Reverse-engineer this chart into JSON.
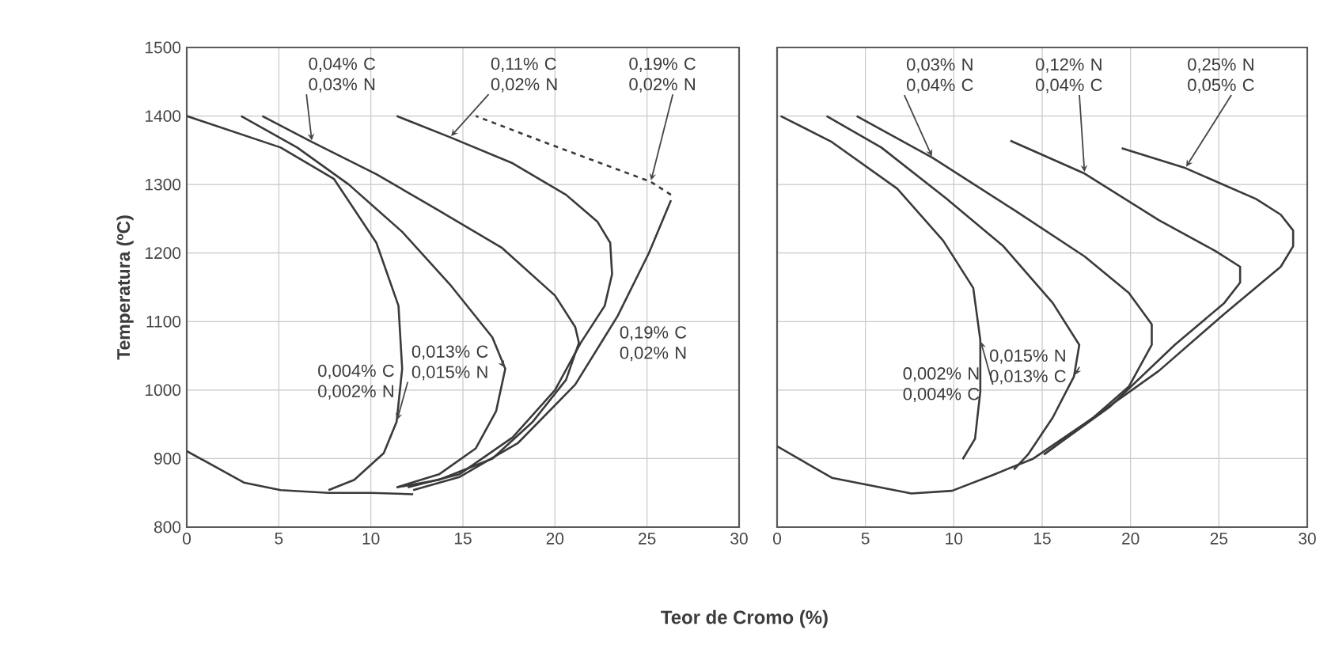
{
  "chart_data": [
    {
      "type": "line",
      "ylabel": "Temperatura (ºC)",
      "xlabel": "Teor de Cromo (%)",
      "xlim": [
        0,
        30
      ],
      "ylim": [
        800,
        1500
      ],
      "xticks": [
        0,
        5,
        10,
        15,
        20,
        25,
        30
      ],
      "yticks": [
        800,
        900,
        1000,
        1100,
        1200,
        1300,
        1400,
        1500
      ],
      "grid": true,
      "series": [
        {
          "color": "#3a3a3a",
          "x": [
            0,
            3.1,
            5.1,
            7.7,
            10,
            12.3
          ],
          "values": [
            911,
            865,
            854,
            850,
            850,
            848
          ]
        },
        {
          "name": "0,004% C 0,002% N",
          "color": "#3a3a3a",
          "x": [
            0,
            5.1,
            8,
            10.3,
            11.5,
            11.7,
            11.4,
            10.7,
            9.1,
            7.7
          ],
          "values": [
            1400,
            1354,
            1308,
            1215,
            1123,
            1031,
            954,
            908,
            869,
            854
          ]
        },
        {
          "name": "0,013% C 0,015% N",
          "color": "#3a3a3a",
          "x": [
            2.95,
            6,
            8.8,
            11.7,
            14.3,
            16.6,
            17.3,
            16.8,
            15.7,
            13.7,
            11.4
          ],
          "values": [
            1400,
            1354,
            1300,
            1231,
            1154,
            1077,
            1031,
            969,
            915,
            877,
            858
          ]
        },
        {
          "name": "0,04% C 0,03% N",
          "color": "#3a3a3a",
          "x": [
            4.1,
            6.8,
            10.3,
            13.7,
            17.1,
            20,
            21.1,
            21.3,
            20.6,
            18.8,
            16.6,
            13.7,
            11.4
          ],
          "values": [
            1400,
            1362,
            1315,
            1262,
            1208,
            1138,
            1092,
            1069,
            1015,
            954,
            900,
            869,
            858
          ]
        },
        {
          "name": "0,11% C 0,02% N",
          "color": "#3a3a3a",
          "x": [
            11.4,
            14.3,
            17.7,
            20.6,
            22.3,
            23,
            23.1,
            22.7,
            21.4,
            20,
            17.7,
            14.8,
            12
          ],
          "values": [
            1400,
            1369,
            1331,
            1285,
            1246,
            1215,
            1169,
            1123,
            1069,
            1000,
            931,
            877,
            858
          ]
        },
        {
          "name": "0,19% C 0,02% N",
          "color": "#3a3a3a",
          "x": [
            12.3,
            14.8,
            18,
            21.1,
            23.4,
            25.1,
            26.3
          ],
          "values": [
            854,
            873,
            923,
            1008,
            1108,
            1200,
            1277
          ]
        },
        {
          "name": "0,19% C 0,02% N",
          "color": "#3a3a3a",
          "line_style": "dashed",
          "x": [
            26.3,
            25.2,
            19.4,
            15.7
          ],
          "values": [
            1285,
            1304,
            1362,
            1400
          ]
        }
      ]
    },
    {
      "type": "line",
      "xlim": [
        0,
        30
      ],
      "ylim": [
        800,
        1500
      ],
      "xticks": [
        0,
        5,
        10,
        15,
        20,
        25,
        30
      ],
      "yticks": [
        800,
        900,
        1000,
        1100,
        1200,
        1300,
        1400,
        1500
      ],
      "grid": true,
      "tick_labels": "x",
      "series": [
        {
          "name": "0,002% N 0,004% C",
          "color": "#3a3a3a",
          "x": [
            0.2,
            3.1,
            6.8,
            9.4,
            11.1,
            11.5,
            11.5,
            11.2,
            10.5
          ],
          "values": [
            1400,
            1362,
            1294,
            1218,
            1149,
            1073,
            998,
            929,
            899
          ]
        },
        {
          "name": "0,015% N 0,013% C",
          "color": "#3a3a3a",
          "x": [
            2.8,
            5.9,
            9.6,
            12.8,
            15.6,
            17.1,
            16.8,
            15.6,
            14.2,
            13.4
          ],
          "values": [
            1400,
            1354,
            1279,
            1210,
            1127,
            1066,
            1020,
            960,
            906,
            884
          ]
        },
        {
          "name": "0,03% N 0,04% C",
          "color": "#3a3a3a",
          "x": [
            4.5,
            8.8,
            13.4,
            17.4,
            19.9,
            21.2,
            21.2,
            19.9,
            17.9,
            14.5,
            12.2,
            9.9,
            7.6,
            3.1,
            0
          ],
          "values": [
            1400,
            1339,
            1263,
            1195,
            1142,
            1096,
            1066,
            1005,
            960,
            900,
            876,
            853,
            849,
            872,
            918
          ]
        },
        {
          "name": "0,12% N 0,04% C",
          "color": "#3a3a3a",
          "x": [
            13.2,
            17.4,
            21.6,
            24.8,
            26.2,
            26.2,
            25.3,
            22.5,
            18.8,
            15.1
          ],
          "values": [
            1364,
            1316,
            1248,
            1203,
            1180,
            1157,
            1127,
            1066,
            975,
            906
          ]
        },
        {
          "name": "0,25% N 0,05% C",
          "color": "#3a3a3a",
          "x": [
            19.5,
            23.1,
            27.1,
            28.5,
            29.2,
            29.2,
            28.5,
            25.3,
            21.6,
            17.9,
            15.1
          ],
          "values": [
            1353,
            1324,
            1279,
            1256,
            1233,
            1210,
            1180,
            1111,
            1028,
            960,
            906
          ]
        }
      ]
    }
  ]
}
